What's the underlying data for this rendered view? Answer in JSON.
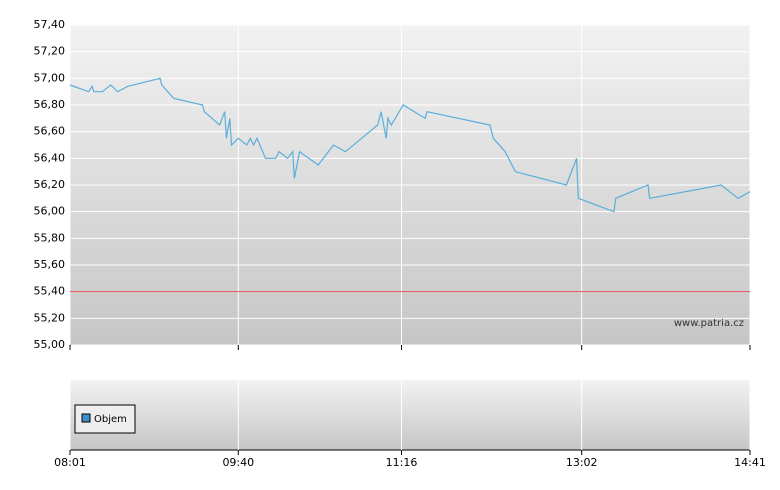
{
  "chart_data": {
    "type": "line",
    "watermark": "www.patria.cz",
    "volume_legend": "Objem",
    "volume_color": "#3d8fcf",
    "series": [
      {
        "color": "#5aaedb",
        "x": [
          481,
          492,
          494,
          495,
          500,
          505,
          509,
          515,
          534,
          535,
          542,
          559,
          560,
          569,
          572,
          573,
          575,
          576,
          580,
          585,
          587,
          589,
          591,
          596,
          602,
          604,
          609,
          612,
          613,
          616,
          627,
          636,
          643,
          662,
          664,
          667,
          668,
          670,
          677,
          690,
          691,
          728,
          730,
          737,
          743,
          773,
          779,
          780,
          801,
          802,
          821,
          822,
          864,
          874,
          881
        ],
        "values": [
          56.95,
          56.9,
          56.94,
          56.9,
          56.9,
          56.95,
          56.9,
          56.94,
          57.0,
          56.95,
          56.85,
          56.8,
          56.75,
          56.65,
          56.75,
          56.55,
          56.7,
          56.5,
          56.55,
          56.5,
          56.55,
          56.5,
          56.55,
          56.4,
          56.4,
          56.45,
          56.4,
          56.45,
          56.25,
          56.45,
          56.35,
          56.5,
          56.45,
          56.65,
          56.75,
          56.55,
          56.7,
          56.65,
          56.8,
          56.7,
          56.75,
          56.65,
          56.55,
          56.45,
          56.3,
          56.2,
          56.4,
          56.1,
          56.0,
          56.1,
          56.2,
          56.1,
          56.2,
          56.1,
          56.15
        ]
      }
    ],
    "reference_line": {
      "value": 55.4,
      "color": "#e05050"
    },
    "xlim": [
      481,
      881
    ],
    "xticks": [
      {
        "value": 481,
        "label": "08:01"
      },
      {
        "value": 580,
        "label": "09:40"
      },
      {
        "value": 676,
        "label": "11:16"
      },
      {
        "value": 782,
        "label": "13:02"
      },
      {
        "value": 881,
        "label": "14:41"
      }
    ],
    "ylim": [
      55.0,
      57.4
    ],
    "yticks": [
      {
        "value": 55.0,
        "label": "55,00"
      },
      {
        "value": 55.2,
        "label": "55,20"
      },
      {
        "value": 55.4,
        "label": "55,40"
      },
      {
        "value": 55.6,
        "label": "55,60"
      },
      {
        "value": 55.8,
        "label": "55,80"
      },
      {
        "value": 56.0,
        "label": "56,00"
      },
      {
        "value": 56.2,
        "label": "56,20"
      },
      {
        "value": 56.4,
        "label": "56,40"
      },
      {
        "value": 56.6,
        "label": "56,60"
      },
      {
        "value": 56.8,
        "label": "56,80"
      },
      {
        "value": 57.0,
        "label": "57,00"
      },
      {
        "value": 57.2,
        "label": "57,20"
      },
      {
        "value": 57.4,
        "label": "57,40"
      }
    ],
    "grid": true
  }
}
